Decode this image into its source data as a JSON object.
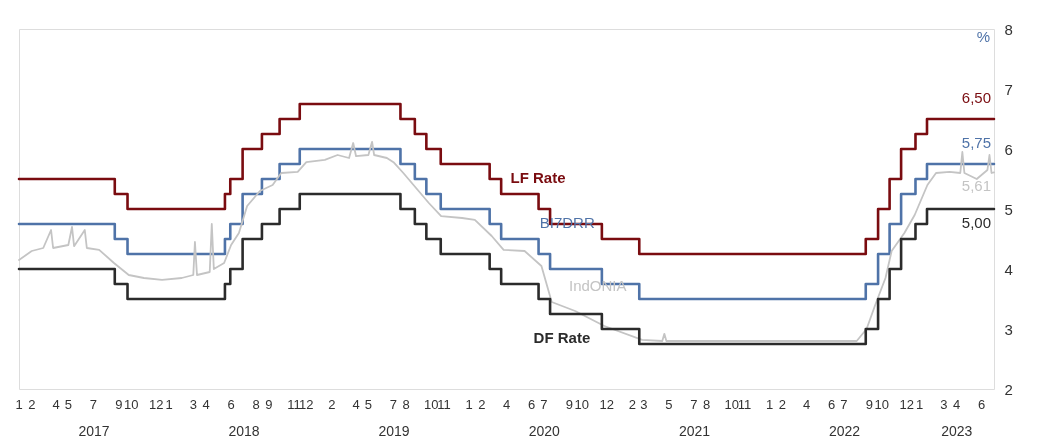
{
  "chart_data": {
    "type": "step",
    "ylabel": "%",
    "ylim": [
      2,
      8
    ],
    "yticks": [
      2,
      3,
      4,
      5,
      6,
      7,
      8
    ],
    "xlim": [
      "2017-01-01",
      "2023-07-01"
    ],
    "grid": false,
    "x": [
      "2017-01-01",
      "2017-08-22",
      "2017-09-22",
      "2018-05-17",
      "2018-05-30",
      "2018-06-29",
      "2018-08-15",
      "2018-09-27",
      "2018-11-15",
      "2019-07-18",
      "2019-08-22",
      "2019-09-19",
      "2019-10-24",
      "2020-02-20",
      "2020-03-19",
      "2020-06-18",
      "2020-07-16",
      "2020-11-19",
      "2021-02-18",
      "2022-08-23",
      "2022-09-22",
      "2022-10-20",
      "2022-11-17",
      "2022-12-22",
      "2023-01-19",
      "2023-07-01"
    ],
    "xticks": [
      {
        "value": "2017-01-01",
        "label": "1"
      },
      {
        "value": "2017-02-01",
        "label": "2"
      },
      {
        "value": "2017-04-01",
        "label": "4"
      },
      {
        "value": "2017-05-01",
        "label": "5"
      },
      {
        "value": "2017-07-01",
        "label": "7"
      },
      {
        "value": "2017-09-01",
        "label": "9"
      },
      {
        "value": "2017-10-01",
        "label": "10"
      },
      {
        "value": "2017-12-01",
        "label": "12"
      },
      {
        "value": "2018-01-01",
        "label": "1"
      },
      {
        "value": "2018-03-01",
        "label": "3"
      },
      {
        "value": "2018-04-01",
        "label": "4"
      },
      {
        "value": "2018-06-01",
        "label": "6"
      },
      {
        "value": "2018-08-01",
        "label": "8"
      },
      {
        "value": "2018-09-01",
        "label": "9"
      },
      {
        "value": "2018-11-01",
        "label": "11"
      },
      {
        "value": "2018-12-01",
        "label": "12"
      },
      {
        "value": "2019-02-01",
        "label": "2"
      },
      {
        "value": "2019-04-01",
        "label": "4"
      },
      {
        "value": "2019-05-01",
        "label": "5"
      },
      {
        "value": "2019-07-01",
        "label": "7"
      },
      {
        "value": "2019-08-01",
        "label": "8"
      },
      {
        "value": "2019-10-01",
        "label": "10"
      },
      {
        "value": "2019-11-01",
        "label": "11"
      },
      {
        "value": "2020-01-01",
        "label": "1"
      },
      {
        "value": "2020-02-01",
        "label": "2"
      },
      {
        "value": "2020-04-01",
        "label": "4"
      },
      {
        "value": "2020-06-01",
        "label": "6"
      },
      {
        "value": "2020-07-01",
        "label": "7"
      },
      {
        "value": "2020-09-01",
        "label": "9"
      },
      {
        "value": "2020-10-01",
        "label": "10"
      },
      {
        "value": "2020-12-01",
        "label": "12"
      },
      {
        "value": "2021-02-01",
        "label": "2"
      },
      {
        "value": "2021-03-01",
        "label": "3"
      },
      {
        "value": "2021-05-01",
        "label": "5"
      },
      {
        "value": "2021-07-01",
        "label": "7"
      },
      {
        "value": "2021-08-01",
        "label": "8"
      },
      {
        "value": "2021-10-01",
        "label": "10"
      },
      {
        "value": "2021-11-01",
        "label": "11"
      },
      {
        "value": "2022-01-01",
        "label": "1"
      },
      {
        "value": "2022-02-01",
        "label": "2"
      },
      {
        "value": "2022-04-01",
        "label": "4"
      },
      {
        "value": "2022-06-01",
        "label": "6"
      },
      {
        "value": "2022-07-01",
        "label": "7"
      },
      {
        "value": "2022-09-01",
        "label": "9"
      },
      {
        "value": "2022-10-01",
        "label": "10"
      },
      {
        "value": "2022-12-01",
        "label": "12"
      },
      {
        "value": "2023-01-01",
        "label": "1"
      },
      {
        "value": "2023-03-01",
        "label": "3"
      },
      {
        "value": "2023-04-01",
        "label": "4"
      },
      {
        "value": "2023-06-01",
        "label": "6"
      }
    ],
    "series": [
      {
        "name": "LF Rate",
        "color": "#7a0c10",
        "values": [
          5.5,
          5.25,
          5.0,
          5.25,
          5.5,
          6.0,
          6.25,
          6.5,
          6.75,
          6.5,
          6.25,
          6.0,
          5.75,
          5.5,
          5.25,
          5.0,
          4.75,
          4.5,
          4.25,
          4.5,
          5.0,
          5.5,
          6.0,
          6.25,
          6.5,
          6.5
        ],
        "value_labels": [
          null,
          null,
          null,
          null,
          null,
          null,
          null,
          null,
          null,
          null,
          null,
          null,
          null,
          null,
          null,
          null,
          null,
          null,
          null,
          null,
          null,
          null,
          null,
          null,
          null,
          "6,50"
        ]
      },
      {
        "name": "BI7DRR",
        "color": "#4f73a8",
        "values": [
          4.75,
          4.5,
          4.25,
          4.5,
          4.75,
          5.25,
          5.5,
          5.75,
          6.0,
          5.75,
          5.5,
          5.25,
          5.0,
          4.75,
          4.5,
          4.25,
          4.0,
          3.75,
          3.5,
          3.75,
          4.25,
          4.75,
          5.25,
          5.5,
          5.75,
          5.75
        ],
        "value_labels": [
          null,
          null,
          null,
          null,
          null,
          null,
          null,
          null,
          null,
          null,
          null,
          null,
          null,
          null,
          null,
          null,
          null,
          null,
          null,
          null,
          null,
          null,
          null,
          null,
          null,
          "5,75"
        ]
      },
      {
        "name": "IndONIA",
        "color": "#c4c4c4",
        "type": "line",
        "x": [
          "2017-01-01",
          "2017-02-01",
          "2017-03-01",
          "2017-03-20",
          "2017-03-25",
          "2017-05-01",
          "2017-05-10",
          "2017-05-15",
          "2017-06-10",
          "2017-06-15",
          "2017-07-15",
          "2017-08-20",
          "2017-09-25",
          "2017-11-01",
          "2017-12-15",
          "2018-02-01",
          "2018-03-01",
          "2018-03-05",
          "2018-03-10",
          "2018-04-10",
          "2018-04-15",
          "2018-04-20",
          "2018-05-15",
          "2018-06-01",
          "2018-06-20",
          "2018-07-10",
          "2018-08-10",
          "2018-09-10",
          "2018-10-01",
          "2018-11-10",
          "2018-12-01",
          "2019-01-15",
          "2019-02-15",
          "2019-03-15",
          "2019-03-25",
          "2019-04-01",
          "2019-05-01",
          "2019-05-10",
          "2019-05-15",
          "2019-06-15",
          "2019-07-01",
          "2019-07-25",
          "2019-08-25",
          "2019-09-25",
          "2019-10-25",
          "2019-12-15",
          "2020-01-15",
          "2020-02-25",
          "2020-03-25",
          "2020-05-15",
          "2020-06-25",
          "2020-07-20",
          "2020-09-15",
          "2020-11-25",
          "2021-02-25",
          "2021-04-15",
          "2021-04-20",
          "2021-04-25",
          "2021-12-01",
          "2022-08-01",
          "2022-08-25",
          "2022-09-15",
          "2022-10-10",
          "2022-10-25",
          "2022-11-25",
          "2022-12-20",
          "2023-01-20",
          "2023-02-10",
          "2023-03-15",
          "2023-04-10",
          "2023-04-15",
          "2023-04-20",
          "2023-05-20",
          "2023-06-15",
          "2023-06-20",
          "2023-06-25",
          "2023-07-01"
        ],
        "values": [
          4.15,
          4.3,
          4.35,
          4.65,
          4.35,
          4.4,
          4.7,
          4.38,
          4.65,
          4.35,
          4.32,
          4.1,
          3.9,
          3.85,
          3.82,
          3.85,
          3.9,
          4.45,
          3.9,
          3.95,
          4.75,
          4.0,
          4.1,
          4.4,
          4.6,
          5.05,
          5.3,
          5.4,
          5.6,
          5.62,
          5.78,
          5.82,
          5.9,
          5.85,
          6.1,
          5.88,
          5.9,
          6.12,
          5.9,
          5.85,
          5.78,
          5.6,
          5.35,
          5.1,
          4.88,
          4.85,
          4.82,
          4.55,
          4.32,
          4.3,
          4.05,
          3.45,
          3.3,
          3.05,
          2.82,
          2.8,
          2.92,
          2.8,
          2.8,
          2.8,
          3.0,
          3.4,
          3.85,
          4.3,
          4.6,
          4.9,
          5.4,
          5.6,
          5.62,
          5.6,
          5.95,
          5.6,
          5.5,
          5.65,
          5.9,
          5.6,
          5.61
        ],
        "value_labels": [
          null,
          null,
          null,
          null,
          null,
          null,
          null,
          null,
          null,
          null,
          null,
          null,
          null,
          null,
          null,
          null,
          null,
          null,
          null,
          null,
          null,
          null,
          null,
          null,
          null,
          null,
          null,
          null,
          null,
          null,
          null,
          null,
          null,
          null,
          null,
          null,
          null,
          null,
          null,
          null,
          null,
          null,
          null,
          null,
          null,
          null,
          null,
          null,
          null,
          null,
          null,
          null,
          null,
          null,
          null,
          null,
          null,
          null,
          null,
          null,
          null,
          null,
          null,
          null,
          null,
          null,
          null,
          null,
          null,
          null,
          null,
          null,
          null,
          null,
          null,
          null,
          "5,61"
        ]
      },
      {
        "name": "DF Rate",
        "color": "#2b2b2b",
        "values": [
          4.0,
          3.75,
          3.5,
          3.75,
          4.0,
          4.5,
          4.75,
          5.0,
          5.25,
          5.0,
          4.75,
          4.5,
          4.25,
          4.0,
          3.75,
          3.5,
          3.25,
          3.0,
          2.75,
          3.0,
          3.5,
          4.0,
          4.5,
          4.75,
          5.0,
          5.0
        ],
        "value_labels": [
          null,
          null,
          null,
          null,
          null,
          null,
          null,
          null,
          null,
          null,
          null,
          null,
          null,
          null,
          null,
          null,
          null,
          null,
          null,
          null,
          null,
          null,
          null,
          null,
          null,
          "5,00"
        ]
      }
    ],
    "annotations": [
      "2017",
      "2018",
      "2019",
      "2020",
      "2021",
      "2022",
      "2023"
    ]
  }
}
